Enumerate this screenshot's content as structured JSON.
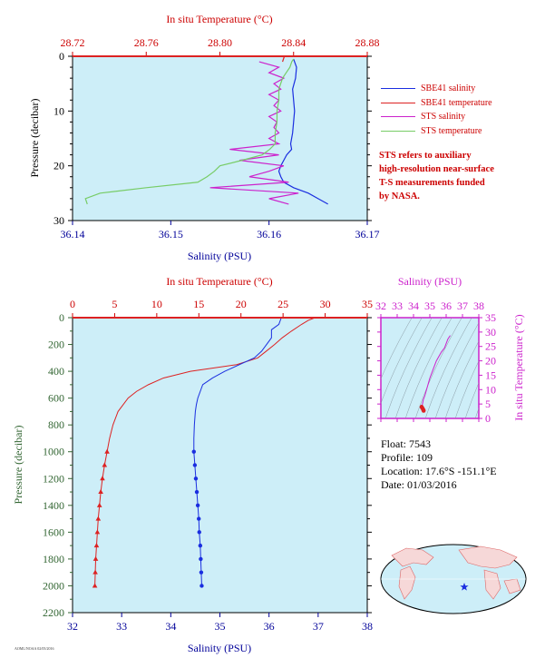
{
  "colors": {
    "red": "#dd2222",
    "blue": "#1a2ee0",
    "magenta": "#cc22cc",
    "green": "#77cc66",
    "panel_bg": "#cdeef8",
    "axis_blue": "#000099",
    "axis_red": "#cc0000",
    "axis_green": "#336633"
  },
  "chart_data": [
    {
      "type": "line",
      "panel": "upper",
      "title": "",
      "x_top": {
        "label": "In situ Temperature (°C)",
        "ticks": [
          "28.72",
          "28.76",
          "28.80",
          "28.84",
          "28.88"
        ],
        "range": [
          28.72,
          28.88
        ]
      },
      "x_bottom": {
        "label": "Salinity (PSU)",
        "ticks": [
          "36.14",
          "36.15",
          "36.16",
          "36.17"
        ],
        "range": [
          36.14,
          36.17
        ]
      },
      "y": {
        "label": "Pressure (decibar)",
        "ticks": [
          "0",
          "10",
          "20",
          "30"
        ],
        "range": [
          0,
          30
        ],
        "inverted": true
      },
      "series": [
        {
          "name": "SBE41 salinity",
          "axis": "salinity",
          "color": "blue",
          "pressure": [
            0.5,
            2,
            4,
            6,
            8,
            10,
            12,
            14,
            16,
            17,
            18,
            19,
            20,
            21,
            22,
            23,
            24,
            25,
            26,
            27
          ],
          "values": [
            36.1625,
            36.1628,
            36.1627,
            36.1624,
            36.1625,
            36.1626,
            36.1625,
            36.1624,
            36.1622,
            36.1623,
            36.1618,
            36.1615,
            36.1612,
            36.161,
            36.1612,
            36.1615,
            36.1625,
            36.164,
            36.165,
            36.166
          ]
        },
        {
          "name": "SBE41 temperature",
          "axis": "temperature",
          "color": "red",
          "pressure": [
            0,
            1
          ],
          "values": [
            28.835,
            28.834
          ]
        },
        {
          "name": "STS salinity",
          "axis": "salinity",
          "color": "magenta",
          "pressure": [
            1,
            2,
            3,
            4,
            5,
            6,
            7,
            8,
            9,
            10,
            11,
            12,
            13,
            14,
            15,
            16,
            17,
            18,
            19,
            20,
            21,
            22,
            23,
            24,
            25,
            26,
            27
          ],
          "values": [
            36.159,
            36.161,
            36.16,
            36.1615,
            36.1605,
            36.1612,
            36.16,
            36.161,
            36.1605,
            36.1612,
            36.16,
            36.1608,
            36.1605,
            36.161,
            36.16,
            36.161,
            36.156,
            36.161,
            36.157,
            36.1615,
            36.16,
            36.158,
            36.162,
            36.154,
            36.163,
            36.16,
            36.162
          ]
        },
        {
          "name": "STS temperature",
          "axis": "temperature",
          "color": "green",
          "pressure": [
            0.5,
            1,
            2,
            3,
            4,
            5,
            6,
            8,
            10,
            12,
            14,
            16,
            17,
            18,
            19,
            20,
            21,
            22,
            23,
            24,
            25,
            26,
            27
          ],
          "values": [
            28.84,
            28.839,
            28.838,
            28.836,
            28.834,
            28.833,
            28.832,
            28.832,
            28.831,
            28.831,
            28.83,
            28.83,
            28.827,
            28.823,
            28.812,
            28.8,
            28.797,
            28.793,
            28.788,
            28.76,
            28.735,
            28.727,
            28.728
          ]
        }
      ]
    },
    {
      "type": "line",
      "panel": "lower",
      "x_top": {
        "label": "In situ Temperature (°C)",
        "ticks": [
          "0",
          "5",
          "10",
          "15",
          "20",
          "25",
          "30",
          "35"
        ],
        "range": [
          0,
          35
        ]
      },
      "x_bottom": {
        "label": "Salinity (PSU)",
        "ticks": [
          "32",
          "33",
          "34",
          "35",
          "36",
          "37",
          "38"
        ],
        "range": [
          32,
          38
        ]
      },
      "y": {
        "label": "Pressure (decibar)",
        "ticks": [
          "0",
          "200",
          "400",
          "600",
          "800",
          "1000",
          "1200",
          "1400",
          "1600",
          "1800",
          "2000",
          "2200"
        ],
        "range": [
          0,
          2200
        ],
        "inverted": true
      },
      "series": [
        {
          "name": "",
          "axis": "temperature",
          "color": "red",
          "pressure": [
            0,
            20,
            50,
            100,
            150,
            200,
            250,
            300,
            350,
            400,
            450,
            500,
            550,
            600,
            700,
            800,
            900,
            1000,
            1100,
            1200,
            1300,
            1400,
            1500,
            1600,
            1700,
            1800,
            1900,
            2000
          ],
          "values": [
            28.8,
            28.0,
            27.2,
            26.0,
            24.9,
            24.0,
            23.0,
            22.0,
            19.5,
            14.0,
            10.8,
            9.0,
            7.6,
            6.6,
            5.4,
            4.8,
            4.4,
            4.1,
            3.8,
            3.55,
            3.35,
            3.2,
            3.05,
            2.95,
            2.85,
            2.75,
            2.7,
            2.65
          ]
        },
        {
          "name": "",
          "axis": "salinity",
          "color": "blue",
          "pressure": [
            0,
            50,
            90,
            100,
            150,
            200,
            250,
            300,
            350,
            400,
            450,
            500,
            550,
            600,
            650,
            700,
            800,
            900,
            1000,
            1100,
            1200,
            1300,
            1400,
            1500,
            1600,
            1700,
            1800,
            1900,
            2000
          ],
          "values": [
            36.25,
            36.2,
            36.05,
            36.05,
            36.05,
            35.95,
            35.85,
            35.7,
            35.4,
            35.1,
            34.85,
            34.65,
            34.6,
            34.55,
            34.52,
            34.5,
            34.48,
            34.47,
            34.47,
            34.49,
            34.51,
            34.53,
            34.55,
            34.57,
            34.58,
            34.6,
            34.61,
            34.62,
            34.63
          ]
        }
      ]
    },
    {
      "type": "scatter",
      "panel": "ts-diagram",
      "x_top": {
        "label": "Salinity (PSU)",
        "ticks": [
          "32",
          "33",
          "34",
          "35",
          "36",
          "37",
          "38"
        ],
        "range": [
          32,
          38
        ]
      },
      "y_right": {
        "label": "In situ Temperature (°C)",
        "ticks": [
          "0",
          "5",
          "10",
          "15",
          "20",
          "25",
          "30",
          "35"
        ],
        "range": [
          0,
          35
        ]
      },
      "series": [
        {
          "name": "",
          "color": "magenta",
          "salinity": [
            36.25,
            36.1,
            35.9,
            35.7,
            35.4,
            35.2,
            35.0,
            34.9,
            34.8,
            34.7,
            34.6,
            34.55,
            34.5
          ],
          "temperature": [
            28.8,
            27.5,
            24.5,
            23.0,
            20.0,
            17.0,
            14.0,
            12.0,
            10.0,
            8.0,
            6.5,
            5.0,
            4.0
          ]
        },
        {
          "name": "",
          "color": "red",
          "salinity": [
            34.5,
            34.55,
            34.6,
            34.62
          ],
          "temperature": [
            4.0,
            3.5,
            3.0,
            2.7
          ]
        }
      ]
    }
  ],
  "legend": [
    {
      "label": "SBE41 salinity",
      "color": "blue"
    },
    {
      "label": "SBE41 temperature",
      "color": "red"
    },
    {
      "label": "STS salinity",
      "color": "magenta"
    },
    {
      "label": "STS temperature",
      "color": "green"
    }
  ],
  "note": [
    "STS refers to auxiliary",
    "high-resolution near-surface",
    "T-S measurements funded",
    "by NASA."
  ],
  "info": {
    "float": "Float:  7543",
    "profile": "Profile:  109",
    "location": "Location:  17.6°S  -151.1°E",
    "date": "Date:  01/03/2016"
  },
  "map": {
    "icon": "world-map-icon",
    "marker_icon": "float-location-star-icon"
  },
  "credit": "AOML/NOAA 02/05/2016"
}
